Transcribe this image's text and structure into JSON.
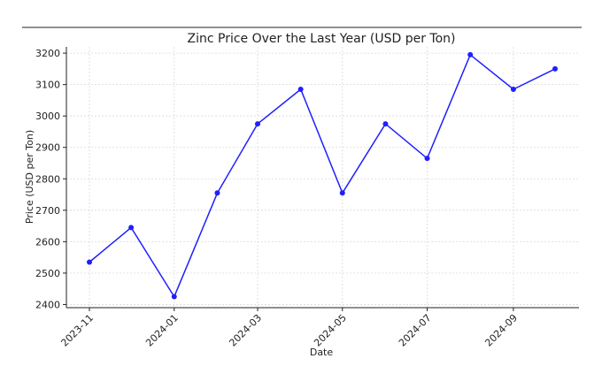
{
  "chart_data": {
    "type": "line",
    "title": "Zinc Price Over the Last Year (USD per Ton)",
    "xlabel": "Date",
    "ylabel": "Price (USD per Ton)",
    "x": [
      "2023-11-01",
      "2023-12-01",
      "2024-01-01",
      "2024-02-01",
      "2024-03-01",
      "2024-04-01",
      "2024-05-01",
      "2024-06-01",
      "2024-07-01",
      "2024-08-01",
      "2024-09-01",
      "2024-10-01"
    ],
    "series": [
      {
        "values": [
          2535,
          2645,
          2425,
          2755,
          2975,
          3085,
          2755,
          2975,
          2865,
          3195,
          3085,
          3150
        ]
      }
    ],
    "x_ticks": [
      "2023-11",
      "2024-01",
      "2024-03",
      "2024-05",
      "2024-07",
      "2024-09"
    ],
    "y_ticks": [
      2400,
      2500,
      2600,
      2700,
      2800,
      2900,
      3000,
      3100,
      3200
    ],
    "ylim": [
      2390,
      3220
    ],
    "grid": true,
    "line_color": "#1f1fff",
    "marker": "circle"
  }
}
